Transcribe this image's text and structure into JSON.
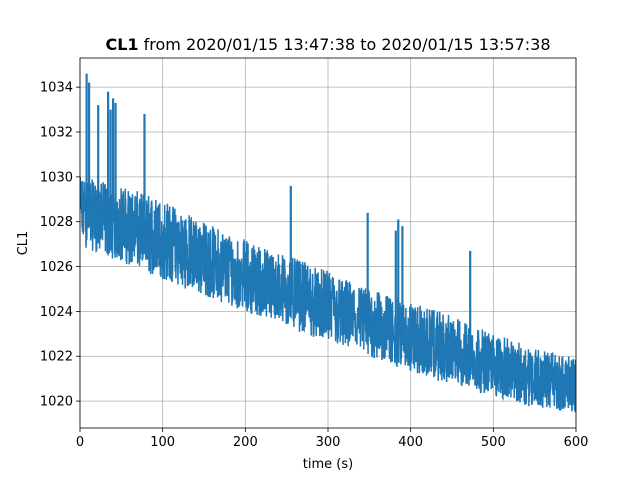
{
  "chart_data": {
    "type": "line",
    "title_bold": "CL1",
    "title_rest": " from 2020/01/15 13:47:38 to 2020/01/15 13:57:38",
    "xlabel": "time (s)",
    "ylabel": "CL1",
    "xlim": [
      0,
      600
    ],
    "ylim": [
      1018.8,
      1035.3
    ],
    "xticks": [
      0,
      100,
      200,
      300,
      400,
      500,
      600
    ],
    "yticks": [
      1020,
      1022,
      1024,
      1026,
      1028,
      1030,
      1032,
      1034
    ],
    "grid": true,
    "line_color": "#1f77b4",
    "series": [
      {
        "x": [
          0,
          50,
          100,
          150,
          200,
          250,
          300,
          350,
          400,
          450,
          500,
          550,
          600
        ],
        "y": [
          1028.8,
          1027.8,
          1027.0,
          1026.2,
          1025.5,
          1024.8,
          1024.1,
          1023.4,
          1022.8,
          1022.2,
          1021.6,
          1021.1,
          1020.6
        ],
        "band_low": [
          1026.9,
          1026.2,
          1025.4,
          1024.7,
          1024.0,
          1023.3,
          1022.6,
          1021.9,
          1021.3,
          1020.7,
          1020.2,
          1019.7,
          1019.5
        ],
        "band_high": [
          1030.0,
          1029.6,
          1029.0,
          1028.0,
          1027.2,
          1026.5,
          1025.8,
          1025.0,
          1024.4,
          1023.8,
          1023.0,
          1022.4,
          1021.9
        ],
        "spikes": [
          {
            "x": 8,
            "y": 1034.6
          },
          {
            "x": 11,
            "y": 1034.2
          },
          {
            "x": 22,
            "y": 1033.2
          },
          {
            "x": 34,
            "y": 1033.8
          },
          {
            "x": 37,
            "y": 1033.0
          },
          {
            "x": 40,
            "y": 1033.5
          },
          {
            "x": 43,
            "y": 1033.3
          },
          {
            "x": 78,
            "y": 1032.8
          },
          {
            "x": 255,
            "y": 1029.6
          },
          {
            "x": 348,
            "y": 1028.4
          },
          {
            "x": 382,
            "y": 1027.6
          },
          {
            "x": 385,
            "y": 1028.1
          },
          {
            "x": 390,
            "y": 1027.8
          },
          {
            "x": 472,
            "y": 1026.7
          }
        ]
      }
    ]
  }
}
